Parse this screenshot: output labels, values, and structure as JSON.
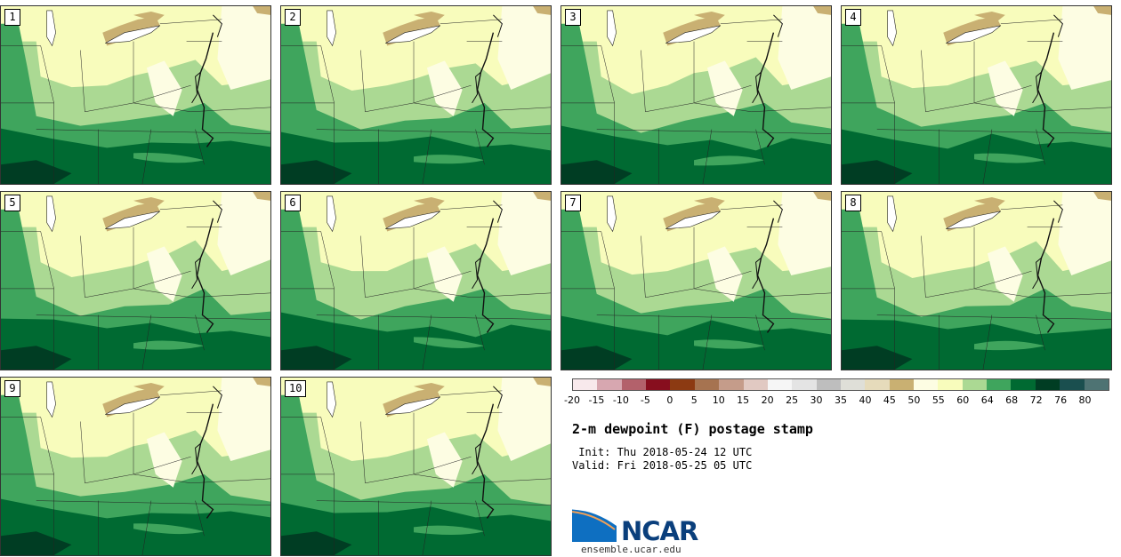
{
  "title": "2-m dewpoint (F) postage stamp",
  "init": " Init: Thu 2018-05-24 12 UTC",
  "valid": "Valid: Fri 2018-05-25 05 UTC",
  "logo": {
    "name": "NCAR",
    "url": "ensemble.ucar.edu"
  },
  "members": [
    "1",
    "2",
    "3",
    "4",
    "5",
    "6",
    "7",
    "8",
    "9",
    "10"
  ],
  "colorbar": {
    "colors": [
      "#f8e9ec",
      "#d7a7b0",
      "#b3616b",
      "#870e1e",
      "#8c3a12",
      "#a67350",
      "#c59c8a",
      "#e1c9c2",
      "#f6f6f6",
      "#e4e4e4",
      "#bebebe",
      "#dfdfd8",
      "#e6dbbb",
      "#c9b072",
      "#fdfde3",
      "#f8fcbc",
      "#abd993",
      "#3fa55d",
      "#006a32",
      "#003d23",
      "#1a4f4f",
      "#4e7373"
    ],
    "ticks": [
      "-20",
      "-15",
      "-10",
      "-5",
      "0",
      "5",
      "10",
      "15",
      "20",
      "25",
      "30",
      "35",
      "40",
      "45",
      "50",
      "55",
      "60",
      "64",
      "68",
      "72",
      "76",
      "80"
    ]
  },
  "colors": {
    "pale": "#f8fcbc",
    "light_green": "#abd993",
    "medium_green": "#3fa55d",
    "dark_green": "#006a32",
    "darkest_green": "#003d23",
    "tan": "#c9b072"
  }
}
